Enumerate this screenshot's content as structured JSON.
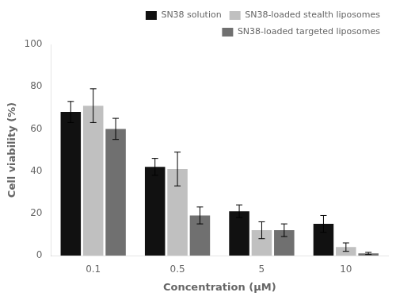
{
  "chart_data": {
    "type": "bar",
    "xlabel": "Concentration (μM)",
    "ylabel": "Cell viability (%)",
    "categories": [
      "0.1",
      "0.5",
      "5",
      "10"
    ],
    "series": [
      {
        "name": "SN38 solution",
        "color": "#111111",
        "values": [
          68,
          42,
          21,
          15
        ],
        "errors": [
          5,
          4,
          3,
          4
        ]
      },
      {
        "name": "SN38-loaded stealth liposomes",
        "color": "#c0c0c0",
        "values": [
          71,
          41,
          12,
          4
        ],
        "errors": [
          8,
          8,
          4,
          2
        ]
      },
      {
        "name": "SN38-loaded targeted liposomes",
        "color": "#707070",
        "values": [
          60,
          19,
          12,
          1
        ],
        "errors": [
          5,
          4,
          3,
          0.5
        ]
      }
    ],
    "ylim": [
      0,
      100
    ],
    "yticks": [
      0,
      20,
      40,
      60,
      80,
      100
    ],
    "grid": false,
    "legend": "upper right"
  }
}
